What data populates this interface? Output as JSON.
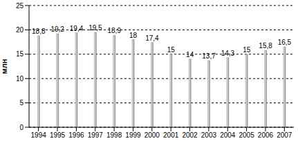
{
  "chart_data": {
    "type": "bar",
    "y_label": "млн",
    "categories": [
      "1994",
      "1995",
      "1996",
      "1997",
      "1998",
      "1999",
      "2000",
      "2001",
      "2002",
      "2003",
      "2004",
      "2005",
      "2006",
      "2007"
    ],
    "values": [
      18.8,
      19.2,
      19.4,
      19.5,
      18.9,
      18,
      17.4,
      15,
      14,
      13.7,
      14.3,
      15,
      15.8,
      16.5
    ],
    "value_labels": [
      "18,8",
      "19,2",
      "19,4",
      "19,5",
      "18,9",
      "18",
      "17,4",
      "15",
      "14",
      "13,7",
      "14,3",
      "15",
      "15,8",
      "16,5"
    ],
    "color": "#c0c0c0",
    "ylim": [
      0,
      25
    ],
    "yticks": [
      0,
      5,
      10,
      15,
      20,
      25
    ],
    "grid": true,
    "data_labels": true
  }
}
